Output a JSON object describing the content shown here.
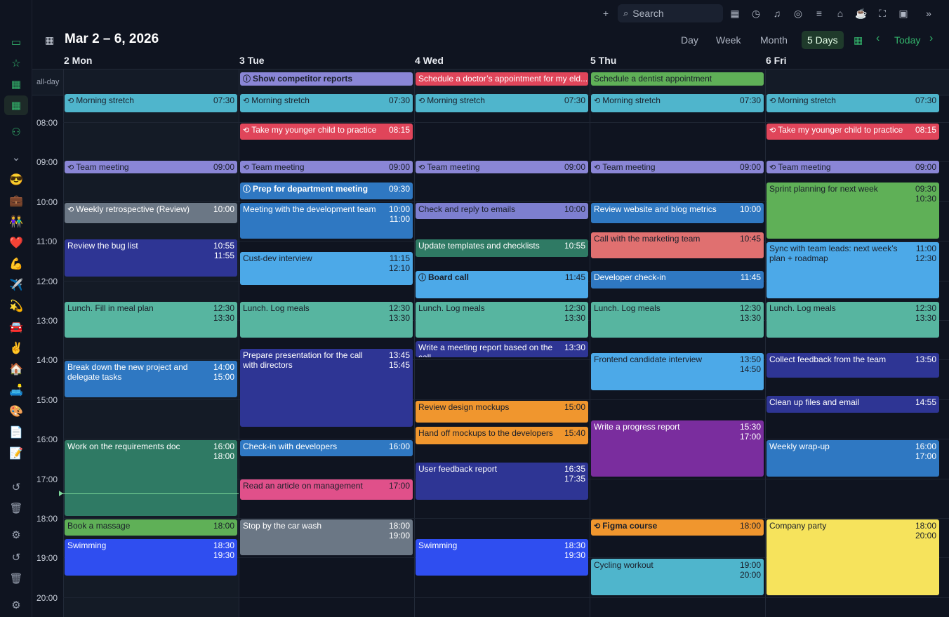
{
  "toolbar": {
    "search_placeholder": "Search"
  },
  "header": {
    "range_title": "Mar 2 – 6, 2026",
    "views": [
      "Day",
      "Week",
      "Month",
      "5 Days"
    ],
    "active_view": "5 Days",
    "today_label": "Today"
  },
  "grid": {
    "allday_label": "all-day",
    "day_headers": [
      "2 Mon",
      "3 Tue",
      "4 Wed",
      "5 Thu",
      "6 Fri"
    ],
    "hours": [
      "08:00",
      "09:00",
      "10:00",
      "11:00",
      "12:00",
      "13:00",
      "14:00",
      "15:00",
      "16:00",
      "17:00",
      "18:00",
      "19:00",
      "20:00"
    ]
  },
  "allday_events": [
    {
      "day": 1,
      "title": "Show competitor reports",
      "color": "#8a86d6",
      "icon": "info-icon",
      "dark": true,
      "bold": true
    },
    {
      "day": 2,
      "title": "Schedule a doctor’s appointment for my eld...",
      "color": "#e0455a"
    },
    {
      "day": 3,
      "title": "Schedule a dentist appointment",
      "color": "#5fb057",
      "dark": true
    }
  ],
  "events": [
    {
      "day": 0,
      "title": "Morning stretch",
      "times": [
        "07:30"
      ],
      "start": 7.3,
      "end": 7.8,
      "color": "#4fb5cc",
      "icon": "repeat-icon",
      "dark": true
    },
    {
      "day": 1,
      "title": "Morning stretch",
      "times": [
        "07:30"
      ],
      "start": 7.3,
      "end": 7.8,
      "color": "#4fb5cc",
      "icon": "repeat-icon",
      "dark": true
    },
    {
      "day": 2,
      "title": "Morning stretch",
      "times": [
        "07:30"
      ],
      "start": 7.3,
      "end": 7.8,
      "color": "#4fb5cc",
      "icon": "repeat-icon",
      "dark": true
    },
    {
      "day": 3,
      "title": "Morning stretch",
      "times": [
        "07:30"
      ],
      "start": 7.3,
      "end": 7.8,
      "color": "#4fb5cc",
      "icon": "repeat-icon",
      "dark": true
    },
    {
      "day": 4,
      "title": "Morning stretch",
      "times": [
        "07:30"
      ],
      "start": 7.3,
      "end": 7.8,
      "color": "#4fb5cc",
      "icon": "repeat-icon",
      "dark": true
    },
    {
      "day": 1,
      "title": "Take my younger child to practice",
      "times": [
        "08:15"
      ],
      "start": 8.05,
      "end": 8.5,
      "color": "#e0455a",
      "icon": "repeat-icon"
    },
    {
      "day": 4,
      "title": "Take my younger child to practice",
      "times": [
        "08:15"
      ],
      "start": 8.05,
      "end": 8.5,
      "color": "#e0455a",
      "icon": "repeat-icon"
    },
    {
      "day": 0,
      "title": "Team meeting",
      "times": [
        "09:00"
      ],
      "start": 9.0,
      "end": 9.3,
      "color": "#8a86d6",
      "icon": "repeat-icon",
      "dark": true
    },
    {
      "day": 1,
      "title": "Team meeting",
      "times": [
        "09:00"
      ],
      "start": 9.0,
      "end": 9.3,
      "color": "#8a86d6",
      "icon": "repeat-icon",
      "dark": true
    },
    {
      "day": 2,
      "title": "Team meeting",
      "times": [
        "09:00"
      ],
      "start": 9.0,
      "end": 9.3,
      "color": "#8a86d6",
      "icon": "repeat-icon",
      "dark": true
    },
    {
      "day": 3,
      "title": "Team meeting",
      "times": [
        "09:00"
      ],
      "start": 9.0,
      "end": 9.3,
      "color": "#8a86d6",
      "icon": "repeat-icon",
      "dark": true
    },
    {
      "day": 4,
      "title": "Team meeting",
      "times": [
        "09:00"
      ],
      "start": 9.0,
      "end": 9.3,
      "color": "#8a86d6",
      "icon": "repeat-icon",
      "dark": true
    },
    {
      "day": 1,
      "title": "Prep for department meeting",
      "times": [
        "09:30"
      ],
      "start": 9.55,
      "end": 10.0,
      "color": "#2f78c2",
      "icon": "info-icon",
      "bold": true
    },
    {
      "day": 4,
      "title": "Sprint planning for next week",
      "times": [
        "09:30",
        "10:30"
      ],
      "start": 9.55,
      "end": 11.0,
      "color": "#5fb057",
      "dark": true
    },
    {
      "day": 0,
      "title": "Weekly retrospective (Review)",
      "times": [
        "10:00"
      ],
      "start": 10.05,
      "end": 10.6,
      "color": "#6b7785",
      "icon": "repeat-icon"
    },
    {
      "day": 1,
      "title": "Meeting with the development team",
      "times": [
        "10:00",
        "11:00"
      ],
      "start": 10.05,
      "end": 11.0,
      "color": "#2f78c2"
    },
    {
      "day": 2,
      "title": "Check and reply to emails",
      "times": [
        "10:00"
      ],
      "start": 10.05,
      "end": 10.5,
      "color": "#7d7fd0",
      "dark": true
    },
    {
      "day": 3,
      "title": "Review website and blog metrics",
      "times": [
        "10:00"
      ],
      "start": 10.05,
      "end": 10.6,
      "color": "#2f78c2"
    },
    {
      "day": 3,
      "title": "Call with the marketing team",
      "times": [
        "10:45"
      ],
      "start": 10.8,
      "end": 11.5,
      "color": "#e07070",
      "dark": true
    },
    {
      "day": 0,
      "title": "Review the bug list",
      "times": [
        "10:55",
        "11:55"
      ],
      "start": 10.98,
      "end": 11.95,
      "color": "#2e3594"
    },
    {
      "day": 2,
      "title": "Update templates and checklists",
      "times": [
        "10:55"
      ],
      "start": 10.98,
      "end": 11.45,
      "color": "#2f7a64"
    },
    {
      "day": 4,
      "title": "Sync with team leads: next week’s plan + roadmap",
      "times": [
        "11:00",
        "12:30"
      ],
      "start": 11.05,
      "end": 12.5,
      "color": "#4ca9e8",
      "dark": true
    },
    {
      "day": 1,
      "title": "Cust-dev interview",
      "times": [
        "11:15",
        "12:10"
      ],
      "start": 11.3,
      "end": 12.17,
      "color": "#4ca9e8",
      "dark": true
    },
    {
      "day": 2,
      "title": "Board call",
      "times": [
        "11:45"
      ],
      "start": 11.78,
      "end": 12.5,
      "color": "#4ca9e8",
      "icon": "info-icon",
      "dark": true,
      "bold": true
    },
    {
      "day": 3,
      "title": "Developer check-in",
      "times": [
        "11:45"
      ],
      "start": 11.78,
      "end": 12.25,
      "color": "#2f78c2"
    },
    {
      "day": 0,
      "title": "Lunch. Fill in meal plan",
      "times": [
        "12:30",
        "13:30"
      ],
      "start": 12.55,
      "end": 13.5,
      "color": "#57b5a0",
      "dark": true
    },
    {
      "day": 1,
      "title": "Lunch. Log meals",
      "times": [
        "12:30",
        "13:30"
      ],
      "start": 12.55,
      "end": 13.5,
      "color": "#57b5a0",
      "dark": true
    },
    {
      "day": 2,
      "title": "Lunch. Log meals",
      "times": [
        "12:30",
        "13:30"
      ],
      "start": 12.55,
      "end": 13.5,
      "color": "#57b5a0",
      "dark": true
    },
    {
      "day": 3,
      "title": "Lunch. Log meals",
      "times": [
        "12:30",
        "13:30"
      ],
      "start": 12.55,
      "end": 13.5,
      "color": "#57b5a0",
      "dark": true
    },
    {
      "day": 4,
      "title": "Lunch. Log meals",
      "times": [
        "12:30",
        "13:30"
      ],
      "start": 12.55,
      "end": 13.5,
      "color": "#57b5a0",
      "dark": true
    },
    {
      "day": 2,
      "title": "Write a meeting report based on the call",
      "times": [
        "13:30"
      ],
      "start": 13.55,
      "end": 14.0,
      "color": "#2e3594"
    },
    {
      "day": 1,
      "title": "Prepare presentation for the call with directors",
      "times": [
        "13:45",
        "15:45"
      ],
      "start": 13.75,
      "end": 15.75,
      "color": "#2e3594"
    },
    {
      "day": 3,
      "title": "Frontend candidate interview",
      "times": [
        "13:50",
        "14:50"
      ],
      "start": 13.85,
      "end": 14.83,
      "color": "#4ca9e8",
      "dark": true
    },
    {
      "day": 4,
      "title": "Collect feedback from the team",
      "times": [
        "13:50"
      ],
      "start": 13.85,
      "end": 14.5,
      "color": "#2e3594"
    },
    {
      "day": 0,
      "title": "Break down the new project and delegate tasks",
      "times": [
        "14:00",
        "15:00"
      ],
      "start": 14.05,
      "end": 15.0,
      "color": "#2f78c2"
    },
    {
      "day": 4,
      "title": "Clean up files and email",
      "times": [
        "14:55"
      ],
      "start": 14.93,
      "end": 15.4,
      "color": "#2e3594"
    },
    {
      "day": 2,
      "title": "Review design mockups",
      "times": [
        "15:00"
      ],
      "start": 15.05,
      "end": 15.65,
      "color": "#f0962e",
      "dark": true
    },
    {
      "day": 3,
      "title": "Write a progress report",
      "times": [
        "15:30",
        "17:00"
      ],
      "start": 15.55,
      "end": 17.0,
      "color": "#7a2d9e"
    },
    {
      "day": 2,
      "title": "Hand off mockups to the developers",
      "times": [
        "15:40"
      ],
      "start": 15.72,
      "end": 16.2,
      "color": "#f0962e",
      "dark": true
    },
    {
      "day": 0,
      "title": "Work on the requirements doc",
      "times": [
        "16:00",
        "18:00"
      ],
      "start": 16.05,
      "end": 18.0,
      "color": "#2f7a64"
    },
    {
      "day": 1,
      "title": "Check-in with developers",
      "times": [
        "16:00"
      ],
      "start": 16.05,
      "end": 16.5,
      "color": "#2f78c2"
    },
    {
      "day": 4,
      "title": "Weekly wrap-up",
      "times": [
        "16:00",
        "17:00"
      ],
      "start": 16.05,
      "end": 17.0,
      "color": "#2f78c2"
    },
    {
      "day": 2,
      "title": "User feedback report",
      "times": [
        "16:35",
        "17:35"
      ],
      "start": 16.62,
      "end": 17.6,
      "color": "#2e3594"
    },
    {
      "day": 1,
      "title": "Read an article on management",
      "times": [
        "17:00"
      ],
      "start": 17.05,
      "end": 17.6,
      "color": "#e0508a",
      "dark": true
    },
    {
      "day": 0,
      "title": "Book a massage",
      "times": [
        "18:00"
      ],
      "start": 18.05,
      "end": 18.5,
      "color": "#5fb057",
      "dark": true
    },
    {
      "day": 1,
      "title": "Stop by the car wash",
      "times": [
        "18:00",
        "19:00"
      ],
      "start": 18.05,
      "end": 19.0,
      "color": "#6b7785"
    },
    {
      "day": 3,
      "title": "Figma course",
      "times": [
        "18:00"
      ],
      "start": 18.05,
      "end": 18.5,
      "color": "#f0962e",
      "icon": "repeat-icon",
      "dark": true,
      "bold": true
    },
    {
      "day": 4,
      "title": "Company party",
      "times": [
        "18:00",
        "20:00"
      ],
      "start": 18.05,
      "end": 20.0,
      "color": "#f6e35c",
      "dark": true
    },
    {
      "day": 0,
      "title": "Swimming",
      "times": [
        "18:30",
        "19:30"
      ],
      "start": 18.55,
      "end": 19.5,
      "color": "#2f4ef0"
    },
    {
      "day": 2,
      "title": "Swimming",
      "times": [
        "18:30",
        "19:30"
      ],
      "start": 18.55,
      "end": 19.5,
      "color": "#2f4ef0"
    },
    {
      "day": 3,
      "title": "Cycling workout",
      "times": [
        "19:00",
        "20:00"
      ],
      "start": 19.05,
      "end": 20.0,
      "color": "#4fb5cc",
      "dark": true
    }
  ],
  "now_marker_hour": 17.35,
  "sidebar": {
    "nav_icons": [
      "inbox-icon",
      "star-icon",
      "calendar-today-icon",
      "calendar-icon",
      "contacts-icon",
      "chevron-down-icon"
    ],
    "emoji_items": [
      "😎",
      "💼",
      "👫",
      "❤️",
      "💪",
      "✈️",
      "💫",
      "🚘",
      "✌️",
      "🏠",
      "🛋️",
      "🎨",
      "📄",
      "📝"
    ],
    "bottom_icons": [
      "history-icon",
      "trash-icon",
      "gear-icon",
      "history-icon",
      "trash-icon",
      "gear-icon"
    ]
  }
}
